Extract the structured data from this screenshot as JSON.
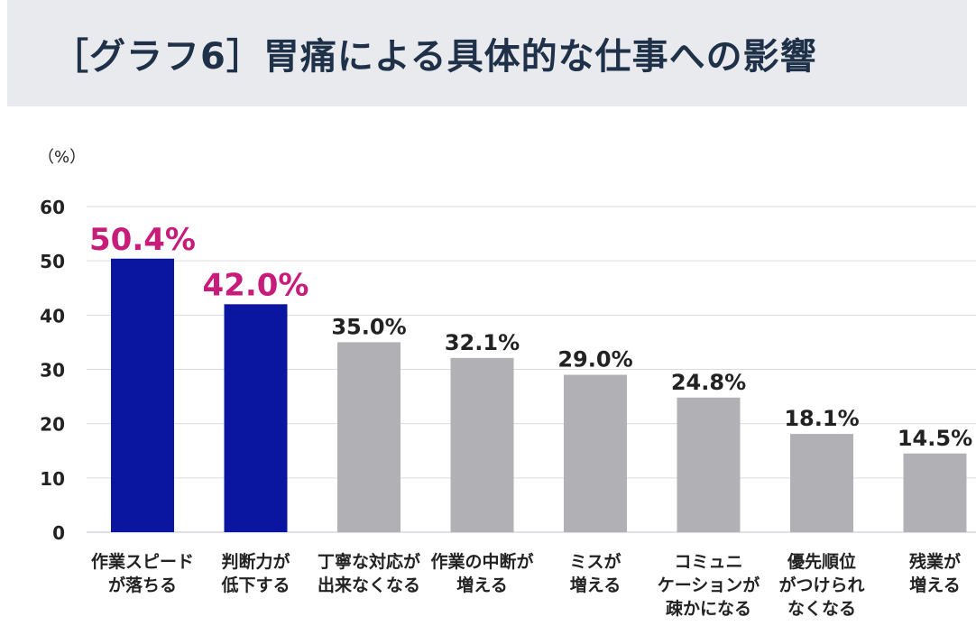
{
  "header": {
    "title": "［グラフ6］胃痛による具体的な仕事への影響"
  },
  "chart_data": {
    "type": "bar",
    "unit_label": "（%）",
    "categories": [
      [
        "作業スピード",
        "が落ちる"
      ],
      [
        "判断力が",
        "低下する"
      ],
      [
        "丁寧な対応が",
        "出来なくなる"
      ],
      [
        "作業の中断が",
        "増える"
      ],
      [
        "ミスが",
        "増える"
      ],
      [
        "コミュニ",
        "ケーションが",
        "疎かになる"
      ],
      [
        "優先順位",
        "がつけられ",
        "なくなる"
      ],
      [
        "残業が",
        "増える"
      ]
    ],
    "values": [
      50.4,
      42.0,
      35.0,
      32.1,
      29.0,
      24.8,
      18.1,
      14.5
    ],
    "value_labels": [
      "50.4%",
      "42.0%",
      "35.0%",
      "32.1%",
      "29.0%",
      "24.8%",
      "18.1%",
      "14.5%"
    ],
    "highlight": [
      true,
      true,
      false,
      false,
      false,
      false,
      false,
      false
    ],
    "yticks": [
      0,
      10,
      20,
      30,
      40,
      50,
      60
    ],
    "ylim": [
      0,
      60
    ],
    "grid": true,
    "colors": {
      "highlight_bar": "#0a15a0",
      "normal_bar": "#b1b0b5",
      "highlight_label": "#c71c7a",
      "normal_label": "#222222",
      "grid": "#d9dbe2"
    }
  }
}
